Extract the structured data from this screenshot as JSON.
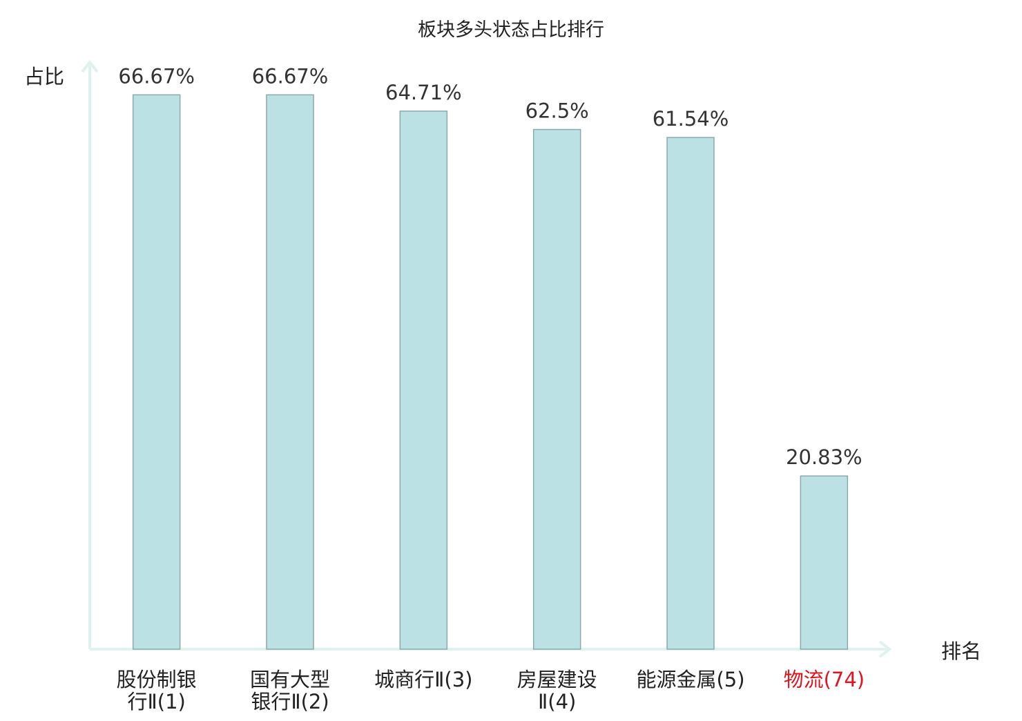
{
  "chart_data": {
    "type": "bar",
    "title": "板块多头状态占比排行",
    "ylabel": "占比",
    "xlabel": "排名",
    "categories": [
      [
        "股份制银",
        "行Ⅱ(1)"
      ],
      [
        "国有大型",
        "银行Ⅱ(2)"
      ],
      [
        "城商行Ⅱ(3)"
      ],
      [
        "房屋建设",
        "Ⅱ(4)"
      ],
      [
        "能源金属(5)"
      ],
      [
        "物流(74)"
      ]
    ],
    "values": [
      66.67,
      66.67,
      64.71,
      62.5,
      61.54,
      20.83
    ],
    "value_labels": [
      "66.67%",
      "66.67%",
      "64.71%",
      "62.5%",
      "61.54%",
      "20.83%"
    ],
    "highlight": [
      false,
      false,
      false,
      false,
      false,
      true
    ],
    "ylim": [
      0,
      70.6
    ],
    "grid": false,
    "colors": {
      "bar_fill": "#bce1e4",
      "bar_stroke": "#8ca9ac",
      "axis": "#e0f2ef",
      "text": "#333333",
      "highlight_text": "#e0141e"
    }
  }
}
